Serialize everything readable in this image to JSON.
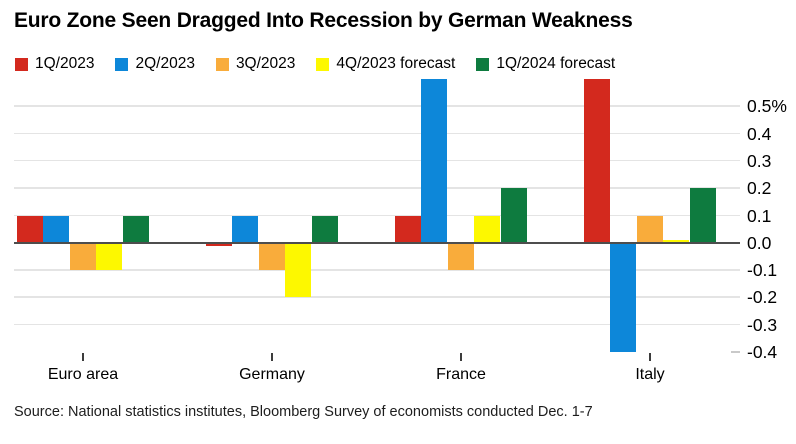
{
  "header": {
    "title": "Euro Zone Seen Dragged Into Recession by German Weakness"
  },
  "source_line": "Source: National statistics institutes, Bloomberg Survey of economists conducted Dec. 1-7",
  "colors": {
    "q1_2023": "#d3291e",
    "q2_2023": "#0d87d9",
    "q3_2023": "#f9ac3b",
    "q4_2023_forecast": "#fdf800",
    "q1_2024_forecast": "#0e7b3f",
    "gridline": "#e4e4e4",
    "zero_line": "#4d4d4d",
    "text": "#000000"
  },
  "chart_data": {
    "type": "bar",
    "title": "Euro Zone Seen Dragged Into Recession by German Weakness",
    "categories": [
      "Euro area",
      "Germany",
      "France",
      "Italy"
    ],
    "series": [
      {
        "name": "1Q/2023",
        "color": "#d3291e",
        "values": [
          0.1,
          -0.01,
          0.1,
          0.6
        ]
      },
      {
        "name": "2Q/2023",
        "color": "#0d87d9",
        "values": [
          0.1,
          0.1,
          0.6,
          -0.4
        ]
      },
      {
        "name": "3Q/2023",
        "color": "#f9ac3b",
        "values": [
          -0.1,
          -0.1,
          -0.1,
          0.1
        ]
      },
      {
        "name": "4Q/2023 forecast",
        "color": "#fdf800",
        "values": [
          -0.1,
          -0.2,
          0.1,
          0.01
        ]
      },
      {
        "name": "1Q/2024 forecast",
        "color": "#0e7b3f",
        "values": [
          0.1,
          0.1,
          0.2,
          0.2
        ]
      }
    ],
    "unit": "%",
    "xlabel": "",
    "ylabel": "",
    "ylim": [
      -0.4,
      0.6
    ],
    "ytick_values": [
      0.5,
      0.4,
      0.3,
      0.2,
      0.1,
      0.0,
      -0.1,
      -0.2,
      -0.3,
      -0.4
    ],
    "ytick_labels": [
      "0.5%",
      "0.4",
      "0.3",
      "0.2",
      "0.1",
      "0.0",
      "-0.1",
      "-0.2",
      "-0.3",
      "-0.4"
    ],
    "grid": "horizontal",
    "legend_position": "top",
    "y_axis_side": "right"
  }
}
